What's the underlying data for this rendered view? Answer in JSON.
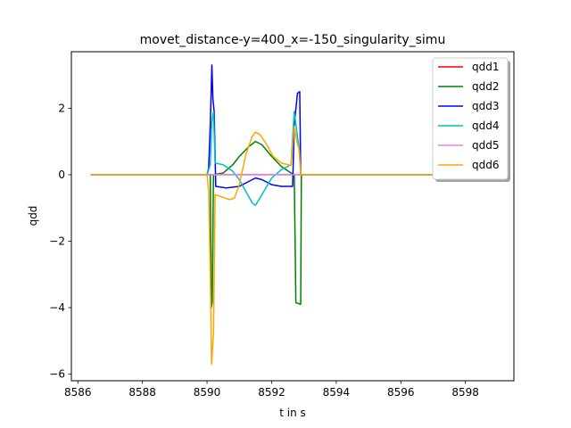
{
  "chart_data": {
    "type": "line",
    "title": "movet_distance-y=400_x=-150_singularity_simu",
    "xlabel": "t in s",
    "ylabel": "qdd",
    "xlim": [
      8585.8,
      8599.5
    ],
    "ylim": [
      -6.2,
      3.7
    ],
    "xticks": [
      8586,
      8588,
      8590,
      8592,
      8594,
      8596,
      8598
    ],
    "yticks": [
      -6,
      -4,
      -2,
      0,
      2
    ],
    "grid": false,
    "legend_position": "top-right",
    "series": [
      {
        "name": "qdd1",
        "color": "#ff0000",
        "points": [
          [
            8586.4,
            0
          ],
          [
            8598.9,
            0
          ]
        ]
      },
      {
        "name": "qdd2",
        "color": "#008000",
        "points": [
          [
            8586.4,
            0
          ],
          [
            8590.0,
            0
          ],
          [
            8590.1,
            0
          ],
          [
            8590.13,
            -4.0
          ],
          [
            8590.16,
            -3.85
          ],
          [
            8590.2,
            0
          ],
          [
            8590.5,
            0.05
          ],
          [
            8590.8,
            0.3
          ],
          [
            8591.0,
            0.55
          ],
          [
            8591.3,
            0.85
          ],
          [
            8591.5,
            1.0
          ],
          [
            8591.7,
            0.9
          ],
          [
            8592.0,
            0.55
          ],
          [
            8592.3,
            0.25
          ],
          [
            8592.6,
            0.05
          ],
          [
            8592.7,
            0
          ],
          [
            8592.75,
            -3.85
          ],
          [
            8592.9,
            -3.9
          ],
          [
            8592.92,
            0
          ],
          [
            8598.9,
            0
          ]
        ]
      },
      {
        "name": "qdd3",
        "color": "#0000ff",
        "points": [
          [
            8586.4,
            0
          ],
          [
            8590.0,
            0
          ],
          [
            8590.05,
            0.2
          ],
          [
            8590.1,
            1.5
          ],
          [
            8590.15,
            3.3
          ],
          [
            8590.18,
            2.3
          ],
          [
            8590.22,
            1.9
          ],
          [
            8590.27,
            -0.35
          ],
          [
            8590.6,
            -0.4
          ],
          [
            8591.0,
            -0.35
          ],
          [
            8591.3,
            -0.2
          ],
          [
            8591.5,
            -0.1
          ],
          [
            8591.7,
            -0.15
          ],
          [
            8592.0,
            -0.3
          ],
          [
            8592.3,
            -0.35
          ],
          [
            8592.65,
            -0.35
          ],
          [
            8592.7,
            1.5
          ],
          [
            8592.8,
            2.45
          ],
          [
            8592.87,
            2.5
          ],
          [
            8592.9,
            0
          ],
          [
            8598.9,
            0
          ]
        ]
      },
      {
        "name": "qdd4",
        "color": "#00bfbf",
        "points": [
          [
            8586.4,
            0
          ],
          [
            8590.0,
            0
          ],
          [
            8590.1,
            0.3
          ],
          [
            8590.15,
            1.6
          ],
          [
            8590.2,
            1.9
          ],
          [
            8590.25,
            0.35
          ],
          [
            8590.5,
            0.3
          ],
          [
            8590.8,
            0.1
          ],
          [
            8591.0,
            -0.15
          ],
          [
            8591.2,
            -0.5
          ],
          [
            8591.4,
            -0.85
          ],
          [
            8591.5,
            -0.92
          ],
          [
            8591.7,
            -0.6
          ],
          [
            8592.0,
            -0.1
          ],
          [
            8592.3,
            0.15
          ],
          [
            8592.6,
            0.3
          ],
          [
            8592.7,
            1.9
          ],
          [
            8592.78,
            1.3
          ],
          [
            8592.85,
            0.8
          ],
          [
            8592.9,
            0
          ],
          [
            8598.9,
            0
          ]
        ]
      },
      {
        "name": "qdd5",
        "color": "#ee82ee",
        "points": [
          [
            8586.4,
            0
          ],
          [
            8598.9,
            0
          ]
        ]
      },
      {
        "name": "qdd6",
        "color": "#ffa500",
        "points": [
          [
            8586.4,
            0
          ],
          [
            8590.0,
            0
          ],
          [
            8590.05,
            -0.5
          ],
          [
            8590.1,
            -3.0
          ],
          [
            8590.14,
            -5.7
          ],
          [
            8590.2,
            -4.8
          ],
          [
            8590.25,
            -0.6
          ],
          [
            8590.4,
            -0.65
          ],
          [
            8590.7,
            -0.75
          ],
          [
            8590.85,
            -0.7
          ],
          [
            8591.0,
            -0.3
          ],
          [
            8591.2,
            0.6
          ],
          [
            8591.4,
            1.15
          ],
          [
            8591.5,
            1.28
          ],
          [
            8591.65,
            1.2
          ],
          [
            8591.85,
            0.9
          ],
          [
            8592.05,
            0.55
          ],
          [
            8592.3,
            0.35
          ],
          [
            8592.6,
            0.28
          ],
          [
            8592.7,
            1.45
          ],
          [
            8592.78,
            1.0
          ],
          [
            8592.85,
            0.75
          ],
          [
            8592.9,
            0
          ],
          [
            8598.9,
            0
          ]
        ]
      }
    ]
  }
}
